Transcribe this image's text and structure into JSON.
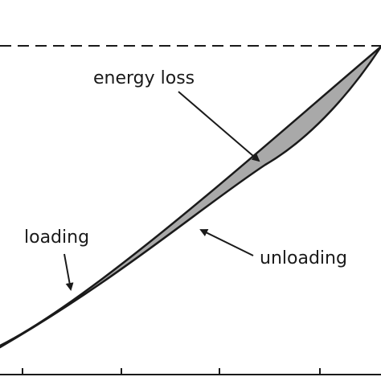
{
  "labels": {
    "energy_loss": "energy loss",
    "loading": "loading",
    "unloading": "unloading"
  },
  "colors": {
    "loop_fill": "#a9a9a9",
    "stroke": "#1a1a1a",
    "background": "#ffffff"
  }
}
